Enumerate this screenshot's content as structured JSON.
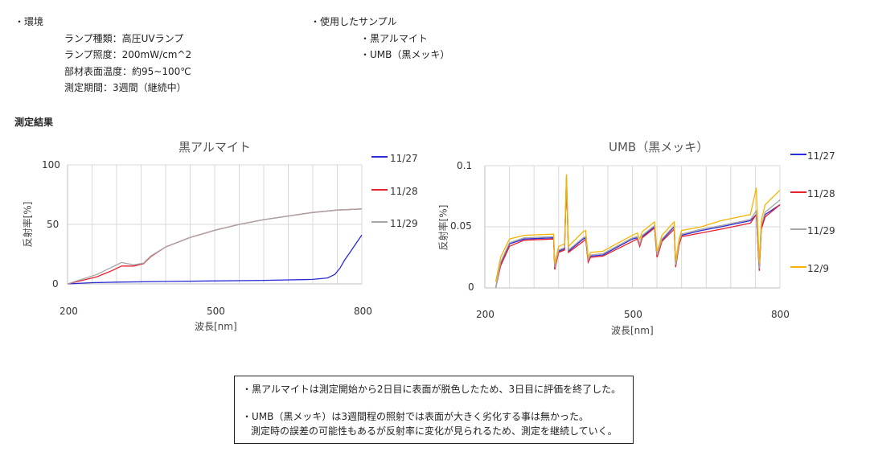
{
  "header": {
    "env_heading": "・環境",
    "env_items": [
      "ランプ種類：高圧UVランプ",
      "ランプ照度：200mW/cm^2",
      "部材表面温度：約95~100℃",
      "測定期間：3週間（継続中）"
    ],
    "sample_heading": "・使用したサンプル",
    "sample_items": [
      "・黒アルマイト",
      "・UMB（黒メッキ）"
    ],
    "results_label": "測定結果"
  },
  "notes": [
    "・黒アルマイトは測定開始から2日目に表面が脱色したため、3日目に評価を終了した。",
    "・UMB（黒メッキ）は3週間程の照射では表面が大きく劣化する事は無かった。",
    "測定時の誤差の可能性もあるが反射率に変化が見られるため、測定を継続していく。"
  ],
  "colors": {
    "blue": "#2b2bd6",
    "red": "#e8212f",
    "gray": "#a6a6a6",
    "yellow": "#f5b400",
    "grid": "#d9d9d9"
  },
  "chart_data": [
    {
      "type": "line",
      "title": "黒アルマイト",
      "xlabel": "波長[nm]",
      "ylabel": "反射率[%]",
      "xlim": [
        200,
        800
      ],
      "ylim": [
        0,
        100
      ],
      "xticks": [
        "200",
        "500",
        "800"
      ],
      "yticks": [
        "0",
        "50",
        "100"
      ],
      "grid": true,
      "legend": "right",
      "series": [
        {
          "name": "11/27",
          "color": "blue",
          "x": [
            200,
            250,
            300,
            400,
            500,
            600,
            700,
            730,
            745,
            755,
            765,
            775,
            785,
            795,
            800
          ],
          "y": [
            0,
            1,
            1.5,
            2,
            2.5,
            3,
            3.8,
            5,
            8,
            13,
            20,
            26,
            32,
            38,
            41
          ]
        },
        {
          "name": "11/28",
          "color": "red",
          "x": [
            200,
            230,
            260,
            290,
            310,
            335,
            355,
            370,
            400,
            450,
            500,
            550,
            600,
            650,
            700,
            750,
            800
          ],
          "y": [
            0,
            3,
            6,
            11,
            15,
            15,
            17,
            23,
            31,
            39,
            45,
            50,
            54,
            57,
            60,
            62,
            63
          ]
        },
        {
          "name": "11/29",
          "color": "gray",
          "x": [
            200,
            230,
            260,
            290,
            310,
            335,
            355,
            370,
            400,
            450,
            500,
            550,
            600,
            650,
            700,
            750,
            800
          ],
          "y": [
            0,
            4,
            8,
            14,
            18,
            16,
            17.5,
            23.5,
            31,
            39,
            45,
            50,
            54,
            57,
            60,
            62,
            63
          ]
        }
      ]
    },
    {
      "type": "line",
      "title": "UMB（黒メッキ）",
      "xlabel": "波長[nm]",
      "ylabel": "反射率[%]",
      "xlim": [
        200,
        800
      ],
      "ylim": [
        0,
        0.1
      ],
      "xticks": [
        "200",
        "500",
        "800"
      ],
      "yticks": [
        "0",
        "0.05",
        "0.1"
      ],
      "grid": true,
      "legend": "right",
      "series": [
        {
          "name": "11/27",
          "color": "blue",
          "x": [
            222,
            232,
            250,
            280,
            340,
            342,
            350,
            362,
            366,
            370,
            400,
            405,
            410,
            415,
            440,
            500,
            510,
            515,
            520,
            545,
            550,
            555,
            560,
            585,
            588,
            595,
            600,
            640,
            680,
            740,
            752,
            758,
            762,
            770,
            800
          ],
          "y": [
            0.0,
            0.02,
            0.036,
            0.04,
            0.041,
            0.016,
            0.03,
            0.032,
            0.09,
            0.03,
            0.04,
            0.041,
            0.022,
            0.026,
            0.027,
            0.04,
            0.041,
            0.035,
            0.042,
            0.05,
            0.026,
            0.032,
            0.039,
            0.05,
            0.018,
            0.036,
            0.043,
            0.047,
            0.05,
            0.055,
            0.06,
            0.015,
            0.05,
            0.06,
            0.068
          ]
        },
        {
          "name": "11/28",
          "color": "red",
          "x": [
            222,
            232,
            250,
            280,
            340,
            342,
            350,
            362,
            366,
            370,
            400,
            405,
            410,
            415,
            440,
            500,
            510,
            515,
            520,
            545,
            550,
            555,
            560,
            585,
            588,
            595,
            600,
            640,
            680,
            740,
            752,
            758,
            762,
            770,
            800
          ],
          "y": [
            0.0,
            0.018,
            0.034,
            0.039,
            0.04,
            0.015,
            0.029,
            0.031,
            0.088,
            0.029,
            0.038,
            0.04,
            0.021,
            0.025,
            0.026,
            0.038,
            0.04,
            0.034,
            0.041,
            0.049,
            0.025,
            0.031,
            0.038,
            0.048,
            0.017,
            0.035,
            0.042,
            0.045,
            0.048,
            0.053,
            0.06,
            0.014,
            0.048,
            0.058,
            0.068
          ]
        },
        {
          "name": "11/29",
          "color": "gray",
          "x": [
            222,
            232,
            250,
            280,
            340,
            342,
            350,
            362,
            366,
            370,
            400,
            405,
            410,
            415,
            440,
            500,
            510,
            515,
            520,
            545,
            550,
            555,
            560,
            585,
            588,
            595,
            600,
            640,
            680,
            740,
            752,
            758,
            762,
            770,
            800
          ],
          "y": [
            0.0,
            0.021,
            0.037,
            0.041,
            0.042,
            0.017,
            0.031,
            0.033,
            0.092,
            0.031,
            0.041,
            0.042,
            0.023,
            0.027,
            0.028,
            0.041,
            0.042,
            0.036,
            0.043,
            0.051,
            0.027,
            0.033,
            0.04,
            0.051,
            0.019,
            0.037,
            0.044,
            0.048,
            0.051,
            0.056,
            0.063,
            0.016,
            0.051,
            0.062,
            0.072
          ]
        },
        {
          "name": "12/9",
          "color": "yellow",
          "x": [
            222,
            232,
            250,
            280,
            340,
            342,
            350,
            362,
            366,
            370,
            400,
            405,
            410,
            415,
            440,
            500,
            510,
            515,
            520,
            545,
            550,
            555,
            560,
            585,
            588,
            595,
            600,
            640,
            680,
            740,
            752,
            758,
            762,
            770,
            800
          ],
          "y": [
            0.005,
            0.025,
            0.04,
            0.043,
            0.044,
            0.02,
            0.034,
            0.036,
            0.093,
            0.034,
            0.046,
            0.047,
            0.025,
            0.029,
            0.03,
            0.043,
            0.045,
            0.04,
            0.046,
            0.054,
            0.03,
            0.036,
            0.043,
            0.054,
            0.022,
            0.04,
            0.047,
            0.05,
            0.055,
            0.06,
            0.082,
            0.02,
            0.055,
            0.068,
            0.08
          ]
        }
      ]
    }
  ]
}
